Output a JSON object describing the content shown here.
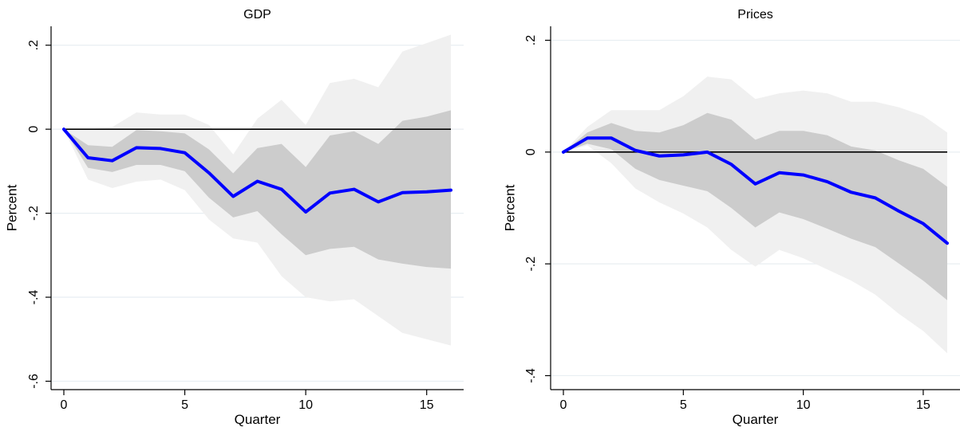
{
  "chart_data": [
    {
      "type": "line",
      "title": "GDP",
      "xlabel": "Quarter",
      "ylabel": "Percent",
      "xlim": [
        0,
        16
      ],
      "ylim": [
        -0.62,
        0.245
      ],
      "xticks": [
        0,
        5,
        10,
        15
      ],
      "xtick_labels": [
        "0",
        "5",
        "10",
        "15"
      ],
      "yticks": [
        0.2,
        0,
        -0.2,
        -0.4,
        -0.6
      ],
      "ytick_labels": [
        ".2",
        "0",
        "-.2",
        "-.4",
        "-.6"
      ],
      "grid": true,
      "zero_line": 0,
      "x": [
        0,
        1,
        2,
        3,
        4,
        5,
        6,
        7,
        8,
        9,
        10,
        11,
        12,
        13,
        14,
        15,
        16
      ],
      "series": [
        {
          "role": "point-estimate",
          "color": "#0000ff",
          "values": [
            0,
            -0.068,
            -0.075,
            -0.044,
            -0.046,
            -0.056,
            -0.104,
            -0.16,
            -0.124,
            -0.143,
            -0.197,
            -0.152,
            -0.143,
            -0.173,
            -0.151,
            -0.149,
            -0.145
          ]
        }
      ],
      "bands": [
        {
          "role": "outer-band",
          "color": "#f0f0f0",
          "lower": [
            0,
            -0.12,
            -0.14,
            -0.125,
            -0.12,
            -0.145,
            -0.215,
            -0.26,
            -0.27,
            -0.35,
            -0.4,
            -0.41,
            -0.405,
            -0.445,
            -0.485,
            -0.5,
            -0.515
          ],
          "upper": [
            0,
            0,
            0.005,
            0.04,
            0.035,
            0.035,
            0.01,
            -0.06,
            0.025,
            0.07,
            0.01,
            0.11,
            0.12,
            0.1,
            0.185,
            0.205,
            0.225
          ]
        },
        {
          "role": "inner-band",
          "color": "#cccccc",
          "lower": [
            0,
            -0.092,
            -0.102,
            -0.085,
            -0.085,
            -0.1,
            -0.163,
            -0.21,
            -0.195,
            -0.25,
            -0.3,
            -0.285,
            -0.28,
            -0.31,
            -0.32,
            -0.328,
            -0.332
          ],
          "upper": [
            0,
            -0.038,
            -0.042,
            -0.002,
            -0.005,
            -0.01,
            -0.048,
            -0.105,
            -0.045,
            -0.035,
            -0.09,
            -0.015,
            -0.005,
            -0.035,
            0.02,
            0.03,
            0.045
          ]
        }
      ]
    },
    {
      "type": "line",
      "title": "Prices",
      "xlabel": "Quarter",
      "ylabel": "Percent",
      "xlim": [
        0,
        16
      ],
      "ylim": [
        -0.425,
        0.225
      ],
      "xticks": [
        0,
        5,
        10,
        15
      ],
      "xtick_labels": [
        "0",
        "5",
        "10",
        "15"
      ],
      "yticks": [
        0.2,
        0,
        -0.2,
        -0.4
      ],
      "ytick_labels": [
        ".2",
        "0",
        "-.2",
        "-.4"
      ],
      "grid": true,
      "zero_line": 0,
      "x": [
        0,
        1,
        2,
        3,
        4,
        5,
        6,
        7,
        8,
        9,
        10,
        11,
        12,
        13,
        14,
        15,
        16
      ],
      "series": [
        {
          "role": "point-estimate",
          "color": "#0000ff",
          "values": [
            0,
            0.025,
            0.025,
            0.003,
            -0.007,
            -0.005,
            0,
            -0.022,
            -0.057,
            -0.037,
            -0.041,
            -0.053,
            -0.072,
            -0.082,
            -0.106,
            -0.128,
            -0.163
          ]
        }
      ],
      "bands": [
        {
          "role": "outer-band",
          "color": "#f0f0f0",
          "lower": [
            0,
            0.012,
            -0.02,
            -0.065,
            -0.09,
            -0.11,
            -0.135,
            -0.175,
            -0.205,
            -0.175,
            -0.19,
            -0.21,
            -0.23,
            -0.255,
            -0.29,
            -0.32,
            -0.36
          ],
          "upper": [
            0,
            0.045,
            0.075,
            0.075,
            0.075,
            0.1,
            0.135,
            0.13,
            0.095,
            0.105,
            0.11,
            0.105,
            0.09,
            0.09,
            0.08,
            0.065,
            0.035
          ]
        },
        {
          "role": "inner-band",
          "color": "#cccccc",
          "lower": [
            0,
            0.015,
            0.005,
            -0.03,
            -0.05,
            -0.06,
            -0.07,
            -0.1,
            -0.135,
            -0.108,
            -0.12,
            -0.137,
            -0.155,
            -0.17,
            -0.2,
            -0.23,
            -0.265
          ],
          "upper": [
            0,
            0.035,
            0.052,
            0.038,
            0.035,
            0.048,
            0.07,
            0.058,
            0.022,
            0.038,
            0.038,
            0.03,
            0.01,
            0.003,
            -0.015,
            -0.03,
            -0.062
          ]
        }
      ]
    }
  ]
}
